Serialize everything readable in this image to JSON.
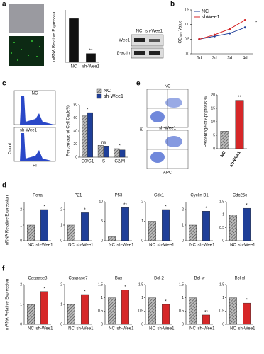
{
  "figure_labels": {
    "blot_lanes": [
      "NC",
      "sh-Wee1"
    ],
    "blot_bands": [
      "Wee1",
      "β-actin"
    ],
    "cycle_hist": [
      "NC",
      "sh-Wee1"
    ],
    "cycle_axes": [
      "Count",
      "PI"
    ],
    "apop_plots": [
      "NC",
      "sh-Wee1"
    ],
    "apop_axes": [
      "PI",
      "APC"
    ]
  },
  "chart_data": [
    {
      "type": "bar",
      "panel": "a",
      "y_label": "mRNA Relative Expression",
      "categories": [
        "NC",
        "sh-Wee1"
      ],
      "values": [
        1.0,
        0.2
      ],
      "colors": [
        "#111111",
        "#111111"
      ],
      "hatch": [
        false,
        false
      ],
      "ylim": [
        0,
        1.2
      ],
      "value_annotations": [
        null,
        "**"
      ]
    },
    {
      "type": "line",
      "panel": "b",
      "y_label": "OD₄₅₀ Value",
      "categories": [
        "1d",
        "2d",
        "3d",
        "4d"
      ],
      "series": [
        {
          "name": "NC",
          "color": "#1f3f99",
          "values": [
            0.5,
            0.6,
            0.7,
            0.9
          ]
        },
        {
          "name": "shWee1",
          "color": "#d62728",
          "values": [
            0.5,
            0.65,
            0.85,
            1.15
          ]
        }
      ],
      "ylim": [
        0,
        1.5
      ],
      "yticks": [
        {
          "value": 0,
          "label": "0.0"
        },
        {
          "value": 0.5,
          "label": "0.5"
        },
        {
          "value": 1,
          "label": "1.0"
        },
        {
          "value": 1.5,
          "label": "1.5"
        }
      ],
      "legend": "upper left",
      "end_annotation": "*"
    },
    {
      "type": "bar",
      "panel": "c",
      "y_label": "Percentage of Cell Cycle%",
      "categories": [
        "G0/G1",
        "S",
        "G2/M"
      ],
      "series": [
        {
          "name": "NC",
          "color": "#888888",
          "hatch": true,
          "values": [
            63,
            18,
            13
          ]
        },
        {
          "name": "sh-Wee1",
          "color": "#1f3f99",
          "hatch": false,
          "values": [
            68,
            17,
            11
          ]
        }
      ],
      "ylim": [
        0,
        80
      ],
      "yticks": [
        0,
        20,
        40,
        60,
        80
      ],
      "value_annotations": [
        "*",
        "ns",
        "*"
      ],
      "legend": "upper right"
    },
    {
      "type": "bar",
      "panel": "e",
      "y_label": "Percentage of Apoptosis %",
      "categories": [
        "NC",
        "sh-Wee1"
      ],
      "values": [
        6.5,
        18
      ],
      "colors": [
        "#888888",
        "#d62728"
      ],
      "hatch": [
        true,
        false
      ],
      "ylim": [
        0,
        20
      ],
      "yticks": [
        0,
        5,
        10,
        15,
        20
      ],
      "value_annotations": [
        null,
        "**"
      ]
    },
    {
      "type": "bar",
      "panel": "d",
      "y_label": "mRNA Relative Expression",
      "title": "Pcna",
      "categories": [
        "NC",
        "sh-Wee1"
      ],
      "values": [
        1,
        2.0
      ],
      "colors": [
        "#888888",
        "#1f3f99"
      ],
      "hatch": [
        true,
        false
      ],
      "ylim": [
        0,
        2.5
      ],
      "yticks": [
        0,
        1,
        2
      ],
      "value_annotations": [
        null,
        "*"
      ]
    },
    {
      "type": "bar",
      "title": "P21",
      "categories": [
        "NC",
        "sh-Wee1"
      ],
      "values": [
        1,
        1.8
      ],
      "colors": [
        "#888888",
        "#1f3f99"
      ],
      "hatch": [
        true,
        false
      ],
      "ylim": [
        0,
        2.5
      ],
      "yticks": [
        0,
        1,
        2
      ],
      "value_annotations": [
        null,
        "*"
      ]
    },
    {
      "type": "bar",
      "title": "P53",
      "categories": [
        "NC",
        "sh-Wee1"
      ],
      "values": [
        1,
        8.5
      ],
      "colors": [
        "#888888",
        "#1f3f99"
      ],
      "hatch": [
        true,
        false
      ],
      "ylim": [
        0,
        10
      ],
      "yticks": [
        0,
        5,
        10
      ],
      "value_annotations": [
        null,
        "**"
      ]
    },
    {
      "type": "bar",
      "title": "Cdk1",
      "categories": [
        "NC",
        "sh-Wee1"
      ],
      "values": [
        1,
        1.6
      ],
      "colors": [
        "#888888",
        "#1f3f99"
      ],
      "hatch": [
        true,
        false
      ],
      "ylim": [
        0,
        2
      ],
      "yticks": [
        0,
        1,
        2
      ],
      "value_annotations": [
        null,
        "*"
      ]
    },
    {
      "type": "bar",
      "title": "Cyclin B1",
      "categories": [
        "NC",
        "sh-Wee1"
      ],
      "values": [
        1,
        1.9
      ],
      "colors": [
        "#888888",
        "#1f3f99"
      ],
      "hatch": [
        true,
        false
      ],
      "ylim": [
        0,
        2.5
      ],
      "yticks": [
        0,
        1,
        2
      ],
      "value_annotations": [
        null,
        "*"
      ]
    },
    {
      "type": "bar",
      "title": "Cdc25c",
      "categories": [
        "NC",
        "sh-Wee1"
      ],
      "values": [
        1,
        1.25
      ],
      "colors": [
        "#888888",
        "#1f3f99"
      ],
      "hatch": [
        true,
        false
      ],
      "ylim": [
        0,
        1.5
      ],
      "yticks": [
        0,
        0.5,
        1,
        1.5
      ],
      "value_annotations": [
        null,
        "*"
      ]
    },
    {
      "type": "bar",
      "panel": "f",
      "y_label": "mRNA Relative Expression",
      "title": "Caspase3",
      "categories": [
        "NC",
        "sh-Wee1"
      ],
      "values": [
        1,
        1.65
      ],
      "colors": [
        "#888888",
        "#d62728"
      ],
      "hatch": [
        true,
        false
      ],
      "ylim": [
        0,
        2
      ],
      "yticks": [
        0,
        1,
        2
      ],
      "value_annotations": [
        null,
        "*"
      ]
    },
    {
      "type": "bar",
      "title": "Caspase7",
      "categories": [
        "NC",
        "sh-Wee1"
      ],
      "values": [
        1,
        1.5
      ],
      "colors": [
        "#888888",
        "#d62728"
      ],
      "hatch": [
        true,
        false
      ],
      "ylim": [
        0,
        2
      ],
      "yticks": [
        0,
        1,
        2
      ],
      "value_annotations": [
        null,
        "*"
      ]
    },
    {
      "type": "bar",
      "title": "Bax",
      "categories": [
        "NC",
        "sh-Wee1"
      ],
      "values": [
        1,
        1.3
      ],
      "colors": [
        "#888888",
        "#d62728"
      ],
      "hatch": [
        true,
        false
      ],
      "ylim": [
        0,
        1.5
      ],
      "yticks": [
        0,
        0.5,
        1,
        1.5
      ],
      "value_annotations": [
        null,
        "*"
      ]
    },
    {
      "type": "bar",
      "title": "Bcl-2",
      "categories": [
        "NC",
        "sh-Wee1"
      ],
      "values": [
        1,
        0.75
      ],
      "colors": [
        "#888888",
        "#d62728"
      ],
      "hatch": [
        true,
        false
      ],
      "ylim": [
        0,
        1.5
      ],
      "yticks": [
        0,
        0.5,
        1,
        1.5
      ],
      "value_annotations": [
        null,
        "*"
      ]
    },
    {
      "type": "bar",
      "title": "Bcl-w",
      "categories": [
        "NC",
        "sh-Wee1"
      ],
      "values": [
        1,
        0.35
      ],
      "colors": [
        "#888888",
        "#d62728"
      ],
      "hatch": [
        true,
        false
      ],
      "ylim": [
        0,
        1.5
      ],
      "yticks": [
        0,
        0.5,
        1,
        1.5
      ],
      "value_annotations": [
        null,
        "**"
      ]
    },
    {
      "type": "bar",
      "title": "Bcl-xl",
      "categories": [
        "NC",
        "sh-Wee1"
      ],
      "values": [
        1,
        0.8
      ],
      "colors": [
        "#888888",
        "#d62728"
      ],
      "hatch": [
        true,
        false
      ],
      "ylim": [
        0,
        1.5
      ],
      "yticks": [
        0,
        0.5,
        1,
        1.5
      ],
      "value_annotations": [
        null,
        "*"
      ]
    }
  ]
}
